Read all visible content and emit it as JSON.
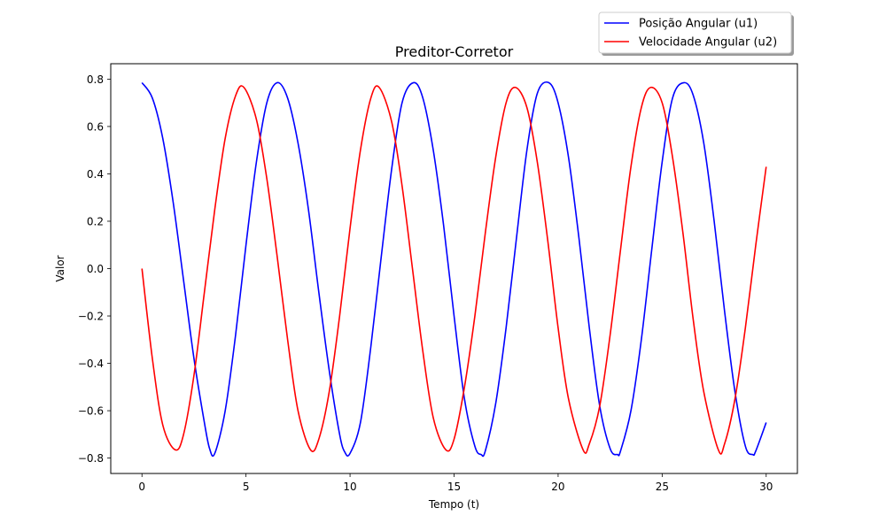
{
  "chart_data": {
    "type": "line",
    "title": "Preditor-Corretor",
    "xlabel": "Tempo (t)",
    "ylabel": "Valor",
    "xlim": [
      -1.5,
      31.5
    ],
    "ylim": [
      -0.865,
      0.865
    ],
    "xticks": [
      0,
      5,
      10,
      15,
      20,
      25,
      30
    ],
    "xtick_labels": [
      "0",
      "5",
      "10",
      "15",
      "20",
      "25",
      "30"
    ],
    "yticks": [
      -0.8,
      -0.6,
      -0.4,
      -0.2,
      0.0,
      0.2,
      0.4,
      0.6,
      0.8
    ],
    "ytick_labels": [
      "−0.8",
      "−0.6",
      "−0.4",
      "−0.2",
      "0.0",
      "0.2",
      "0.4",
      "0.6",
      "0.8"
    ],
    "grid": false,
    "legend_position": "top-right, outside above the plot area",
    "series": [
      {
        "name": "Posição Angular (u1)",
        "color": "#0000ff",
        "x": [
          0,
          0.5,
          1,
          1.5,
          2,
          2.5,
          3,
          3.25,
          3.5,
          4,
          4.5,
          5,
          5.5,
          6,
          6.5,
          7,
          7.5,
          8,
          8.5,
          9,
          9.5,
          9.75,
          10,
          10.5,
          11,
          11.5,
          12,
          12.5,
          13.05,
          13.5,
          14,
          14.5,
          15,
          15.5,
          16,
          16.3,
          16.5,
          17,
          17.5,
          18,
          18.5,
          19,
          19.55,
          20,
          20.5,
          21,
          21.5,
          22,
          22.5,
          22.85,
          23,
          23.5,
          24,
          24.5,
          25,
          25.5,
          26.05,
          26.5,
          27,
          27.5,
          28,
          28.5,
          29,
          29.35,
          29.5,
          30
        ],
        "y": [
          0.785,
          0.72,
          0.55,
          0.28,
          -0.05,
          -0.38,
          -0.65,
          -0.76,
          -0.78,
          -0.6,
          -0.28,
          0.1,
          0.45,
          0.7,
          0.785,
          0.72,
          0.53,
          0.25,
          -0.1,
          -0.43,
          -0.7,
          -0.775,
          -0.78,
          -0.65,
          -0.33,
          0.05,
          0.42,
          0.7,
          0.785,
          0.72,
          0.5,
          0.18,
          -0.2,
          -0.55,
          -0.75,
          -0.785,
          -0.77,
          -0.57,
          -0.25,
          0.13,
          0.5,
          0.74,
          0.785,
          0.7,
          0.47,
          0.13,
          -0.25,
          -0.58,
          -0.76,
          -0.785,
          -0.77,
          -0.6,
          -0.3,
          0.08,
          0.45,
          0.72,
          0.785,
          0.73,
          0.53,
          0.2,
          -0.18,
          -0.52,
          -0.75,
          -0.785,
          -0.77,
          -0.65
        ]
      },
      {
        "name": "Velocidade Angular (u2)",
        "color": "#ff0000",
        "x": [
          0,
          0.5,
          1,
          1.6,
          2,
          2.5,
          3,
          3.5,
          4,
          4.5,
          4.9,
          5.5,
          6,
          6.5,
          7,
          7.5,
          8.1,
          8.5,
          9,
          9.5,
          10,
          10.5,
          11,
          11.4,
          12,
          12.5,
          13,
          13.5,
          14,
          14.6,
          15,
          15.5,
          16,
          16.5,
          17,
          17.5,
          17.95,
          18.5,
          19,
          19.5,
          20,
          20.5,
          21.2,
          21.5,
          22,
          22.5,
          23,
          23.5,
          24,
          24.45,
          25,
          25.5,
          26,
          26.5,
          27,
          27.7,
          28,
          28.5,
          29,
          29.5,
          30
        ],
        "y": [
          0.0,
          -0.38,
          -0.66,
          -0.765,
          -0.7,
          -0.45,
          -0.1,
          0.25,
          0.55,
          0.73,
          0.765,
          0.63,
          0.38,
          0.05,
          -0.3,
          -0.6,
          -0.765,
          -0.72,
          -0.52,
          -0.2,
          0.17,
          0.5,
          0.72,
          0.765,
          0.62,
          0.35,
          0.0,
          -0.35,
          -0.63,
          -0.765,
          -0.72,
          -0.5,
          -0.2,
          0.15,
          0.47,
          0.7,
          0.765,
          0.68,
          0.45,
          0.12,
          -0.25,
          -0.55,
          -0.765,
          -0.74,
          -0.58,
          -0.28,
          0.08,
          0.43,
          0.68,
          0.765,
          0.7,
          0.47,
          0.15,
          -0.22,
          -0.52,
          -0.765,
          -0.74,
          -0.55,
          -0.25,
          0.1,
          0.43
        ]
      }
    ]
  }
}
